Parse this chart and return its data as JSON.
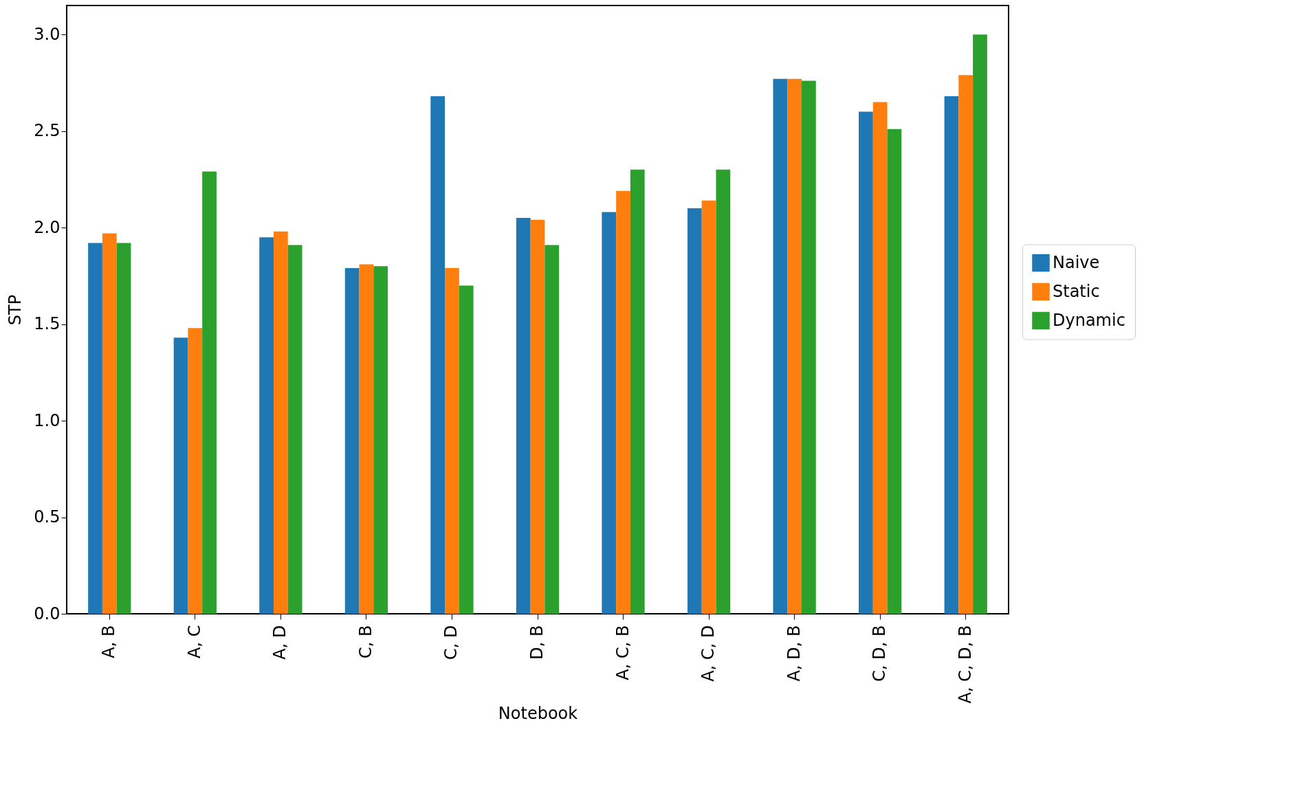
{
  "chart_data": {
    "type": "bar",
    "xlabel": "Notebook",
    "ylabel": "STP",
    "categories": [
      "A, B",
      "A, C",
      "A, D",
      "C, B",
      "C, D",
      "D, B",
      "A, C, B",
      "A, C, D",
      "A, D, B",
      "C, D, B",
      "A, C, D, B"
    ],
    "series": [
      {
        "name": "Naive",
        "color": "#1f77b4",
        "values": [
          1.92,
          1.43,
          1.95,
          1.79,
          2.68,
          2.05,
          2.08,
          2.1,
          2.77,
          2.6,
          2.68
        ]
      },
      {
        "name": "Static",
        "color": "#ff7f0e",
        "values": [
          1.97,
          1.48,
          1.98,
          1.81,
          1.79,
          2.04,
          2.19,
          2.14,
          2.77,
          2.65,
          2.79
        ]
      },
      {
        "name": "Dynamic",
        "color": "#2ca02c",
        "values": [
          1.92,
          2.29,
          1.91,
          1.8,
          1.7,
          1.91,
          2.3,
          2.3,
          2.76,
          2.51,
          3.0
        ]
      }
    ],
    "ylim": [
      0,
      3.15
    ],
    "yticks": [
      {
        "value": 0,
        "label": "0.0"
      },
      0.5,
      {
        "value": 1,
        "label": "1.0"
      },
      1.5,
      {
        "value": 2,
        "label": "2.0"
      },
      2.5,
      {
        "value": 3,
        "label": "3.0"
      }
    ],
    "legend": "right",
    "grid": false
  }
}
